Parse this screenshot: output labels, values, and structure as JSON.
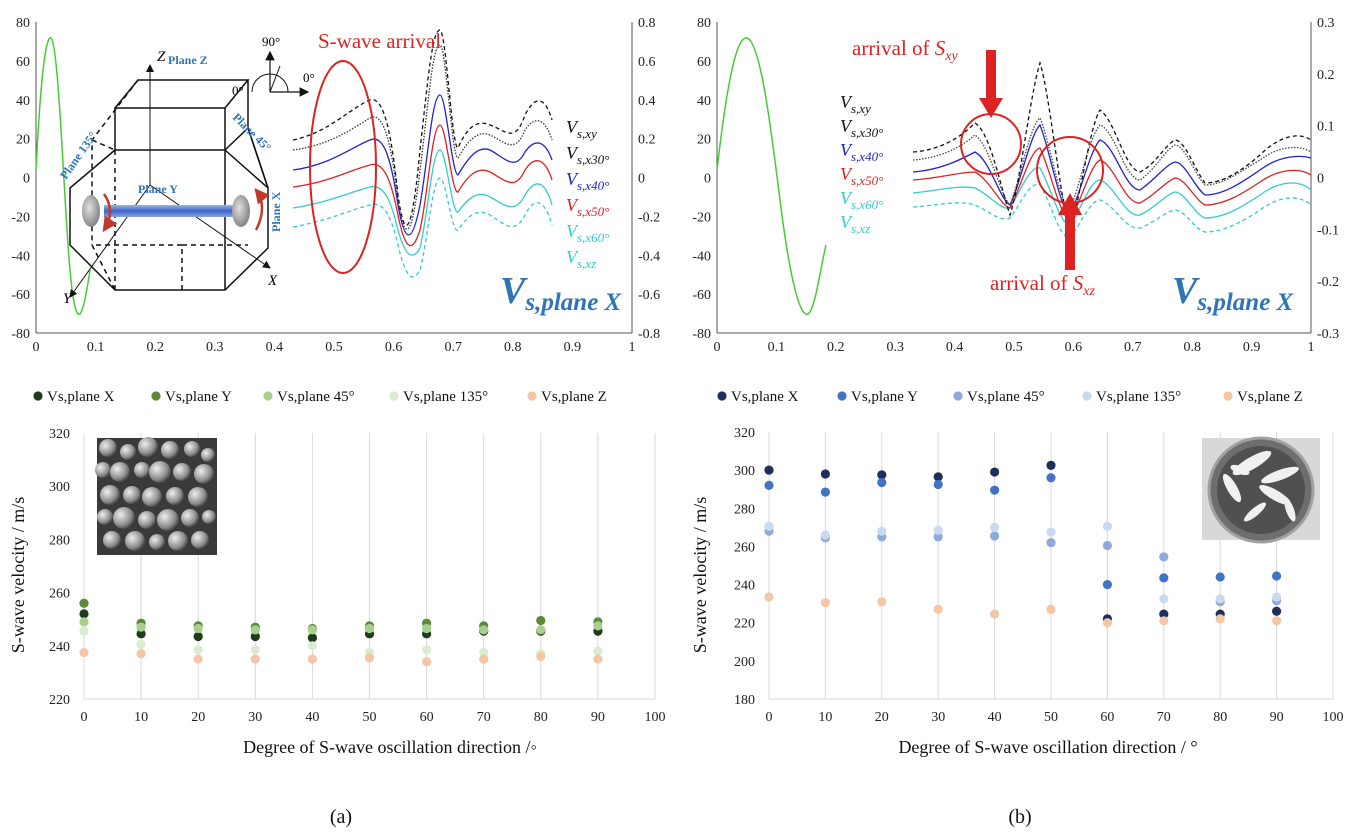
{
  "captions": [
    "(a)",
    "(b)"
  ],
  "panel_a_top": {
    "axis": {
      "x_ticks": [
        "0",
        "0.1",
        "0.2",
        "0.3",
        "0.4",
        "0.5",
        "0.6",
        "0.7",
        "0.8",
        "0.9",
        "1"
      ],
      "y_left_ticks": [
        "80",
        "60",
        "40",
        "20",
        "0",
        "-20",
        "-40",
        "-60",
        "-80"
      ],
      "y_right_ticks": [
        "0.8",
        "0.6",
        "0.4",
        "0.2",
        "0",
        "-0.2",
        "-0.4",
        "-0.6",
        "-0.8"
      ]
    },
    "annotation": "S-wave arrival",
    "angle_labels": {
      "a90": "90°",
      "a0_left": "0°",
      "a0_right": "0°"
    },
    "axis_labels": {
      "z": "Z",
      "x": "X",
      "y": "Y"
    },
    "planes": {
      "z": "Plane Z",
      "p45": "Plane 45°",
      "p135": "Plane 135°",
      "y": "Plane Y",
      "x": "Plane X"
    },
    "series_labels": [
      {
        "main": "V",
        "sub": "s,xy",
        "color": "#111111"
      },
      {
        "main": "V",
        "sub": "s,x30°",
        "color": "#111111"
      },
      {
        "main": "V",
        "sub": "s,x40°",
        "color": "#2222cc"
      },
      {
        "main": "V",
        "sub": "s,x50°",
        "color": "#dd2222"
      },
      {
        "main": "V",
        "sub": "s,x60°",
        "color": "#33cccc"
      },
      {
        "main": "V",
        "sub": "s,xz",
        "color": "#33cccc"
      }
    ],
    "big_label": {
      "main": "V",
      "sub": "s,plane X"
    }
  },
  "panel_b_top": {
    "axis": {
      "x_ticks": [
        "0",
        "0.1",
        "0.2",
        "0.3",
        "0.4",
        "0.5",
        "0.6",
        "0.7",
        "0.8",
        "0.9",
        "1"
      ],
      "y_left_ticks": [
        "80",
        "60",
        "40",
        "20",
        "0",
        "-20",
        "-40",
        "-60",
        "-80"
      ],
      "y_right_ticks": [
        "0.3",
        "0.2",
        "0.1",
        "0",
        "-0.1",
        "-0.2",
        "-0.3"
      ]
    },
    "annotation_xy": {
      "text": "arrival of ",
      "main": "S",
      "sub": "xy"
    },
    "annotation_xz": {
      "text": "arrival of ",
      "main": "S",
      "sub": "xz"
    },
    "series_labels": [
      {
        "main": "V",
        "sub": "s,xy",
        "color": "#111111"
      },
      {
        "main": "V",
        "sub": "s,x30°",
        "color": "#111111"
      },
      {
        "main": "V",
        "sub": "s,x40°",
        "color": "#2222cc"
      },
      {
        "main": "V",
        "sub": "s,x50°",
        "color": "#dd2222"
      },
      {
        "main": "V",
        "sub": "s,x60°",
        "color": "#33cccc"
      },
      {
        "main": "V",
        "sub": "s,xz",
        "color": "#33cccc"
      }
    ],
    "big_label": {
      "main": "V",
      "sub": "s,plane X"
    }
  },
  "chart_data": [
    {
      "type": "scatter",
      "panel": "a",
      "xlabel": "Degree of S-wave oscillation direction /◦",
      "ylabel": "S-wave velocity / m/s",
      "xlim": [
        0,
        100
      ],
      "ylim": [
        220,
        320
      ],
      "x_ticks": [
        0,
        10,
        20,
        30,
        40,
        50,
        60,
        70,
        80,
        90,
        100
      ],
      "y_ticks": [
        220,
        240,
        260,
        280,
        300,
        320
      ],
      "grid": "vertical",
      "legend": "top",
      "x": [
        0,
        10,
        20,
        30,
        40,
        50,
        60,
        70,
        80,
        90
      ],
      "series": [
        {
          "name": "Vs,plane X",
          "color": "#1f3d1a",
          "values": [
            252,
            244.5,
            243.5,
            243.5,
            243,
            244.5,
            244.5,
            245.5,
            245.5,
            245.5
          ]
        },
        {
          "name": "Vs,plane Y",
          "color": "#5a8a3a",
          "values": [
            256,
            248.5,
            247.5,
            247,
            246.5,
            247.5,
            248.5,
            247.5,
            249.5,
            249
          ]
        },
        {
          "name": "Vs,plane 45°",
          "color": "#a8d08d",
          "values": [
            249,
            247,
            246.5,
            246,
            246,
            246.5,
            246.5,
            246,
            246,
            247.5
          ]
        },
        {
          "name": "Vs,plane 135°",
          "color": "#d9ecd0",
          "values": [
            245.5,
            240.5,
            238.5,
            238.5,
            240,
            237.5,
            238.5,
            237.5,
            237,
            238
          ]
        },
        {
          "name": "Vs,plane Z",
          "color": "#f5c6a5",
          "values": [
            237.5,
            237,
            235,
            235,
            235,
            235.5,
            234,
            235,
            236,
            235
          ]
        }
      ]
    },
    {
      "type": "scatter",
      "panel": "b",
      "xlabel": "Degree of S-wave oscillation direction / °",
      "ylabel": "S-wave velocity / m/s",
      "xlim": [
        0,
        100
      ],
      "ylim": [
        180,
        320
      ],
      "x_ticks": [
        0,
        10,
        20,
        30,
        40,
        50,
        60,
        70,
        80,
        90,
        100
      ],
      "y_ticks": [
        180,
        200,
        220,
        240,
        260,
        280,
        300,
        320
      ],
      "grid": "vertical",
      "legend": "top",
      "x": [
        0,
        10,
        20,
        30,
        40,
        50,
        60,
        70,
        80,
        90
      ],
      "series": [
        {
          "name": "Vs,plane X",
          "color": "#1f2f5c",
          "values": [
            300,
            298,
            297.5,
            296.5,
            299,
            302.5,
            222,
            224.5,
            224.5,
            226
          ]
        },
        {
          "name": "Vs,plane Y",
          "color": "#4472c4",
          "values": [
            292,
            288.5,
            293.5,
            292.5,
            289.5,
            296,
            240,
            243.5,
            244,
            244.5
          ]
        },
        {
          "name": "Vs,plane 45°",
          "color": "#8ea9db",
          "values": [
            268,
            264.5,
            265,
            265,
            265.5,
            262,
            260.5,
            254.5,
            231,
            231.5
          ]
        },
        {
          "name": "Vs,plane 135°",
          "color": "#c9daf0",
          "values": [
            270.5,
            266,
            268,
            268.5,
            270,
            267.5,
            270.5,
            232.5,
            232.5,
            233.5
          ]
        },
        {
          "name": "Vs,plane Z",
          "color": "#f5c6a5",
          "values": [
            233.5,
            230.5,
            231,
            227,
            224.5,
            227,
            220,
            221,
            222,
            221
          ]
        }
      ]
    }
  ]
}
